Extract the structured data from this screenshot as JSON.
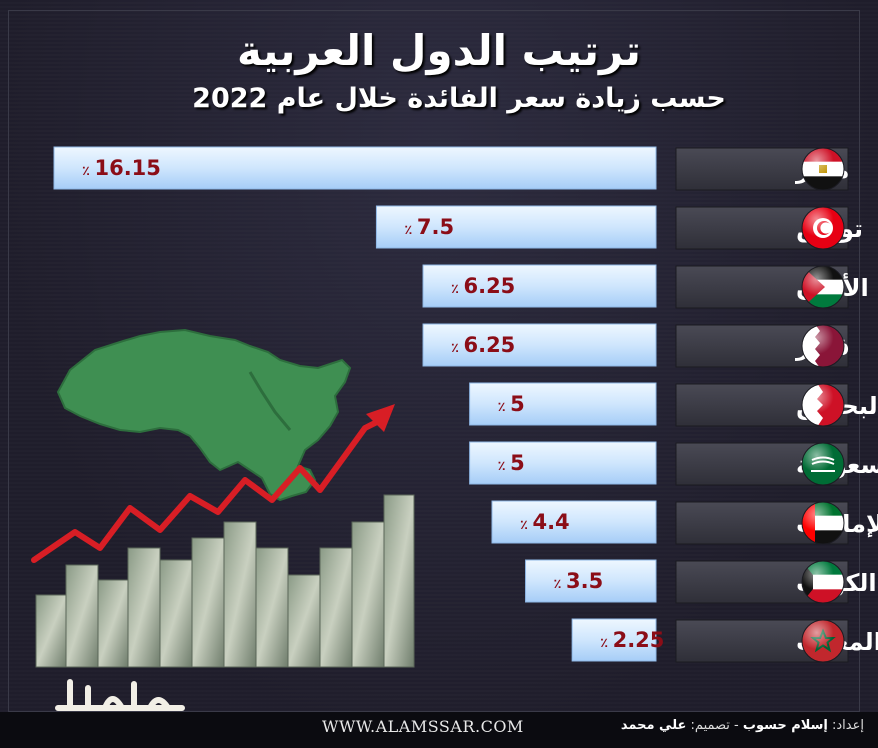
{
  "title": "ترتيب الدول العربية",
  "subtitle": "حسب زيادة سعر الفائدة خلال عام 2022",
  "chart_data": {
    "type": "bar",
    "orientation": "horizontal",
    "title": "ترتيب الدول العربية",
    "subtitle": "حسب زيادة سعر الفائدة خلال عام 2022",
    "categories": [
      "مصر",
      "تونس",
      "الأردن",
      "قطر",
      "البحرين",
      "السعودية",
      "الإمارات",
      "الكويت",
      "المغرب"
    ],
    "values": [
      16.15,
      7.5,
      6.25,
      6.25,
      5,
      5,
      4.4,
      3.5,
      2.25
    ],
    "value_labels": [
      "16.15",
      "7.5",
      "6.25",
      "6.25",
      "5",
      "5",
      "4.4",
      "3.5",
      "2.25"
    ],
    "unit_symbol": "٪",
    "xlim": [
      0,
      16.15
    ],
    "grid": false,
    "legend": "none",
    "bar_direction": "right-to-left",
    "colors": {
      "bar_light": "#d9ecff",
      "bar_mid": "#a9d1fb",
      "value_text": "#8b0d17",
      "label_bg": "#3b3b45",
      "label_text": "#ffffff",
      "map_green": "#3f8f52",
      "arrow_red": "#d81e25"
    },
    "flag_icons": [
      "egypt-flag-icon",
      "tunisia-flag-icon",
      "jordan-flag-icon",
      "qatar-flag-icon",
      "bahrain-flag-icon",
      "saudi-flag-icon",
      "uae-flag-icon",
      "kuwait-flag-icon",
      "morocco-flag-icon"
    ]
  },
  "footer": {
    "website": "WWW.ALAMSSAR.COM",
    "credits_prefix": "إعداد:",
    "author": "إسلام حسوب",
    "separator": "-",
    "design_prefix": "تصميم:",
    "designer": "علي محمد"
  },
  "logo_text": "الأمصار"
}
